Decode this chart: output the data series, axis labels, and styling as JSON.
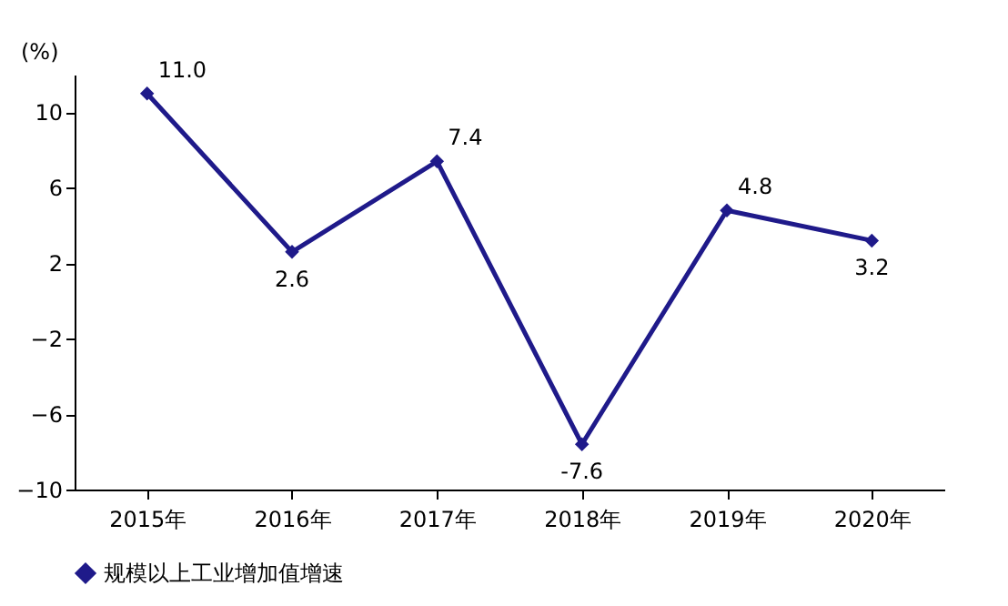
{
  "chart_data": {
    "type": "line",
    "ylabel": "(%)",
    "categories": [
      "2015年",
      "2016年",
      "2017年",
      "2018年",
      "2019年",
      "2020年"
    ],
    "series": [
      {
        "name": "规模以上工业增加值增速",
        "color": "#1f1a8a",
        "values": [
          11.0,
          2.6,
          7.4,
          -7.6,
          4.8,
          3.2
        ],
        "value_labels": [
          "11.0",
          "2.6",
          "7.4",
          "-7.6",
          "4.8",
          "3.2"
        ]
      }
    ],
    "ylim": [
      -10,
      12
    ],
    "yticks": [
      -10,
      -6,
      -2,
      2,
      6,
      10
    ],
    "legend": "bottom",
    "marker": "diamond"
  }
}
